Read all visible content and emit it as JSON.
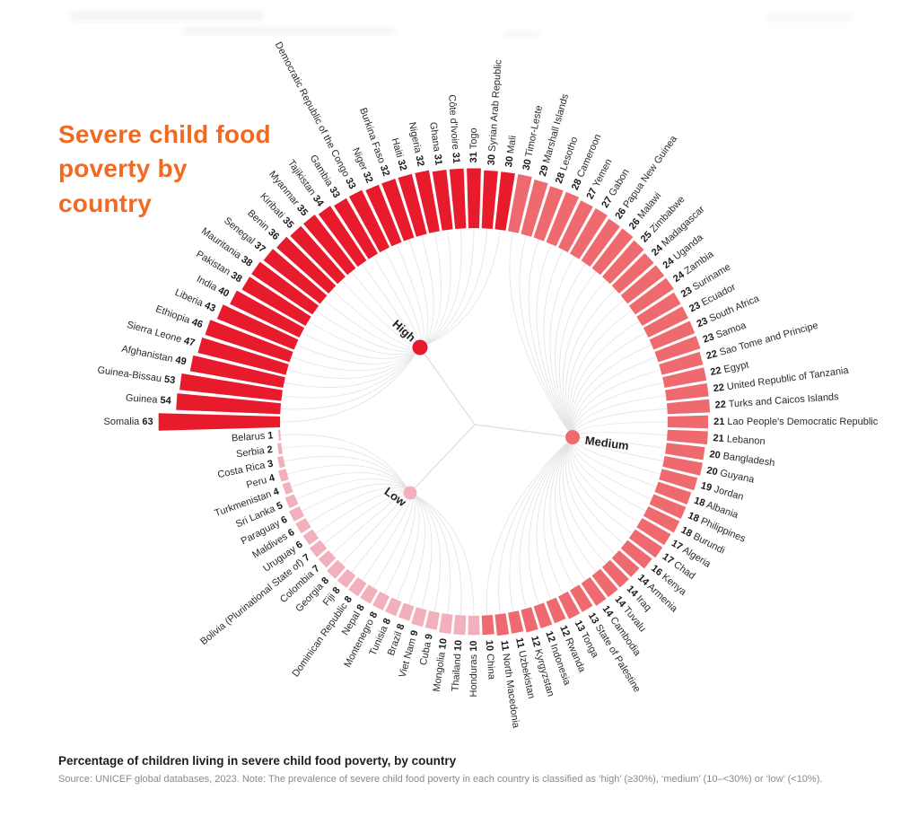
{
  "title": {
    "line1": "Severe child food",
    "line2": "poverty by",
    "line3": "country",
    "color": "#f26a21"
  },
  "clusters": {
    "high": {
      "label": "High",
      "color": "#e81b2d"
    },
    "medium": {
      "label": "Medium",
      "color": "#ee6a6e"
    },
    "low": {
      "label": "Low",
      "color": "#f2b0bd"
    }
  },
  "chart_data": {
    "type": "radial-bar",
    "title": "Severe child food poverty by country",
    "unit": "percent of children",
    "value_range": [
      0,
      63
    ],
    "classification": {
      "high": "≥30%",
      "medium": "10–<30%",
      "low": "<10%"
    },
    "countries": [
      {
        "name": "Somalia",
        "value": 63,
        "cluster": "high"
      },
      {
        "name": "Guinea",
        "value": 54,
        "cluster": "high"
      },
      {
        "name": "Guinea-Bissau",
        "value": 53,
        "cluster": "high"
      },
      {
        "name": "Afghanistan",
        "value": 49,
        "cluster": "high"
      },
      {
        "name": "Sierra Leone",
        "value": 47,
        "cluster": "high"
      },
      {
        "name": "Ethiopia",
        "value": 46,
        "cluster": "high"
      },
      {
        "name": "Liberia",
        "value": 43,
        "cluster": "high"
      },
      {
        "name": "India",
        "value": 40,
        "cluster": "high"
      },
      {
        "name": "Pakistan",
        "value": 38,
        "cluster": "high"
      },
      {
        "name": "Mauritania",
        "value": 38,
        "cluster": "high"
      },
      {
        "name": "Senegal",
        "value": 37,
        "cluster": "high"
      },
      {
        "name": "Benin",
        "value": 36,
        "cluster": "high"
      },
      {
        "name": "Kiribati",
        "value": 35,
        "cluster": "high"
      },
      {
        "name": "Myanmar",
        "value": 35,
        "cluster": "high"
      },
      {
        "name": "Tajikistan",
        "value": 34,
        "cluster": "high"
      },
      {
        "name": "Gambia",
        "value": 33,
        "cluster": "high"
      },
      {
        "name": "Democratic Republic of the Congo",
        "value": 33,
        "cluster": "high"
      },
      {
        "name": "Niger",
        "value": 32,
        "cluster": "high"
      },
      {
        "name": "Burkina Faso",
        "value": 32,
        "cluster": "high"
      },
      {
        "name": "Haiti",
        "value": 32,
        "cluster": "high"
      },
      {
        "name": "Nigeria",
        "value": 32,
        "cluster": "high"
      },
      {
        "name": "Ghana",
        "value": 31,
        "cluster": "high"
      },
      {
        "name": "Côte d'Ivoire",
        "value": 31,
        "cluster": "high"
      },
      {
        "name": "Togo",
        "value": 31,
        "cluster": "high"
      },
      {
        "name": "Syrian Arab Republic",
        "value": 30,
        "cluster": "high"
      },
      {
        "name": "Mali",
        "value": 30,
        "cluster": "high"
      },
      {
        "name": "Timor-Leste",
        "value": 30,
        "cluster": "medium"
      },
      {
        "name": "Marshall Islands",
        "value": 29,
        "cluster": "medium"
      },
      {
        "name": "Lesotho",
        "value": 28,
        "cluster": "medium"
      },
      {
        "name": "Cameroon",
        "value": 28,
        "cluster": "medium"
      },
      {
        "name": "Yemen",
        "value": 27,
        "cluster": "medium"
      },
      {
        "name": "Gabon",
        "value": 27,
        "cluster": "medium"
      },
      {
        "name": "Papua New Guinea",
        "value": 26,
        "cluster": "medium"
      },
      {
        "name": "Malawi",
        "value": 26,
        "cluster": "medium"
      },
      {
        "name": "Zimbabwe",
        "value": 25,
        "cluster": "medium"
      },
      {
        "name": "Madagascar",
        "value": 24,
        "cluster": "medium"
      },
      {
        "name": "Uganda",
        "value": 24,
        "cluster": "medium"
      },
      {
        "name": "Zambia",
        "value": 24,
        "cluster": "medium"
      },
      {
        "name": "Suriname",
        "value": 23,
        "cluster": "medium"
      },
      {
        "name": "Ecuador",
        "value": 23,
        "cluster": "medium"
      },
      {
        "name": "South Africa",
        "value": 23,
        "cluster": "medium"
      },
      {
        "name": "Samoa",
        "value": 23,
        "cluster": "medium"
      },
      {
        "name": "Sao Tome and Principe",
        "value": 22,
        "cluster": "medium"
      },
      {
        "name": "Egypt",
        "value": 22,
        "cluster": "medium"
      },
      {
        "name": "United Republic of Tanzania",
        "value": 22,
        "cluster": "medium"
      },
      {
        "name": "Turks and Caicos Islands",
        "value": 22,
        "cluster": "medium"
      },
      {
        "name": "Lao People's Democratic Republic",
        "value": 21,
        "cluster": "medium"
      },
      {
        "name": "Lebanon",
        "value": 21,
        "cluster": "medium"
      },
      {
        "name": "Bangladesh",
        "value": 20,
        "cluster": "medium"
      },
      {
        "name": "Guyana",
        "value": 20,
        "cluster": "medium"
      },
      {
        "name": "Jordan",
        "value": 19,
        "cluster": "medium"
      },
      {
        "name": "Albania",
        "value": 18,
        "cluster": "medium"
      },
      {
        "name": "Philippines",
        "value": 18,
        "cluster": "medium"
      },
      {
        "name": "Burundi",
        "value": 18,
        "cluster": "medium"
      },
      {
        "name": "Algeria",
        "value": 17,
        "cluster": "medium"
      },
      {
        "name": "Chad",
        "value": 17,
        "cluster": "medium"
      },
      {
        "name": "Kenya",
        "value": 16,
        "cluster": "medium"
      },
      {
        "name": "Armenia",
        "value": 14,
        "cluster": "medium"
      },
      {
        "name": "Iraq",
        "value": 14,
        "cluster": "medium"
      },
      {
        "name": "Tuvalu",
        "value": 14,
        "cluster": "medium"
      },
      {
        "name": "Cambodia",
        "value": 14,
        "cluster": "medium"
      },
      {
        "name": "State of Palestine",
        "value": 13,
        "cluster": "medium"
      },
      {
        "name": "Tonga",
        "value": 13,
        "cluster": "medium"
      },
      {
        "name": "Rwanda",
        "value": 12,
        "cluster": "medium"
      },
      {
        "name": "Indonesia",
        "value": 12,
        "cluster": "medium"
      },
      {
        "name": "Kyrgyzstan",
        "value": 12,
        "cluster": "medium"
      },
      {
        "name": "Uzbekistan",
        "value": 11,
        "cluster": "medium"
      },
      {
        "name": "North Macedonia",
        "value": 11,
        "cluster": "medium"
      },
      {
        "name": "China",
        "value": 10,
        "cluster": "medium"
      },
      {
        "name": "Honduras",
        "value": 10,
        "cluster": "low"
      },
      {
        "name": "Thailand",
        "value": 10,
        "cluster": "low"
      },
      {
        "name": "Mongolia",
        "value": 10,
        "cluster": "low"
      },
      {
        "name": "Cuba",
        "value": 9,
        "cluster": "low"
      },
      {
        "name": "Viet Nam",
        "value": 9,
        "cluster": "low"
      },
      {
        "name": "Brazil",
        "value": 8,
        "cluster": "low"
      },
      {
        "name": "Tunisia",
        "value": 8,
        "cluster": "low"
      },
      {
        "name": "Montenegro",
        "value": 8,
        "cluster": "low"
      },
      {
        "name": "Nepal",
        "value": 8,
        "cluster": "low"
      },
      {
        "name": "Dominican Republic",
        "value": 8,
        "cluster": "low"
      },
      {
        "name": "Fiji",
        "value": 8,
        "cluster": "low"
      },
      {
        "name": "Georgia",
        "value": 8,
        "cluster": "low"
      },
      {
        "name": "Colombia",
        "value": 7,
        "cluster": "low"
      },
      {
        "name": "Bolivia (Plurinational State of)",
        "value": 7,
        "cluster": "low"
      },
      {
        "name": "Uruguay",
        "value": 6,
        "cluster": "low"
      },
      {
        "name": "Maldives",
        "value": 6,
        "cluster": "low"
      },
      {
        "name": "Paraguay",
        "value": 6,
        "cluster": "low"
      },
      {
        "name": "Sri Lanka",
        "value": 5,
        "cluster": "low"
      },
      {
        "name": "Turkmenistan",
        "value": 4,
        "cluster": "low"
      },
      {
        "name": "Peru",
        "value": 4,
        "cluster": "low"
      },
      {
        "name": "Costa Rica",
        "value": 3,
        "cluster": "low"
      },
      {
        "name": "Serbia",
        "value": 2,
        "cluster": "low"
      },
      {
        "name": "Belarus",
        "value": 1,
        "cluster": "low"
      }
    ]
  },
  "footer": {
    "heading": "Percentage of children living in severe child food poverty, by country",
    "source": "Source: UNICEF global databases, 2023. Note: The prevalence of severe child food poverty in each country is classified as ‘high’ (≥30%), ‘medium’ (10–<30%) or ‘low’ (<10%)."
  }
}
